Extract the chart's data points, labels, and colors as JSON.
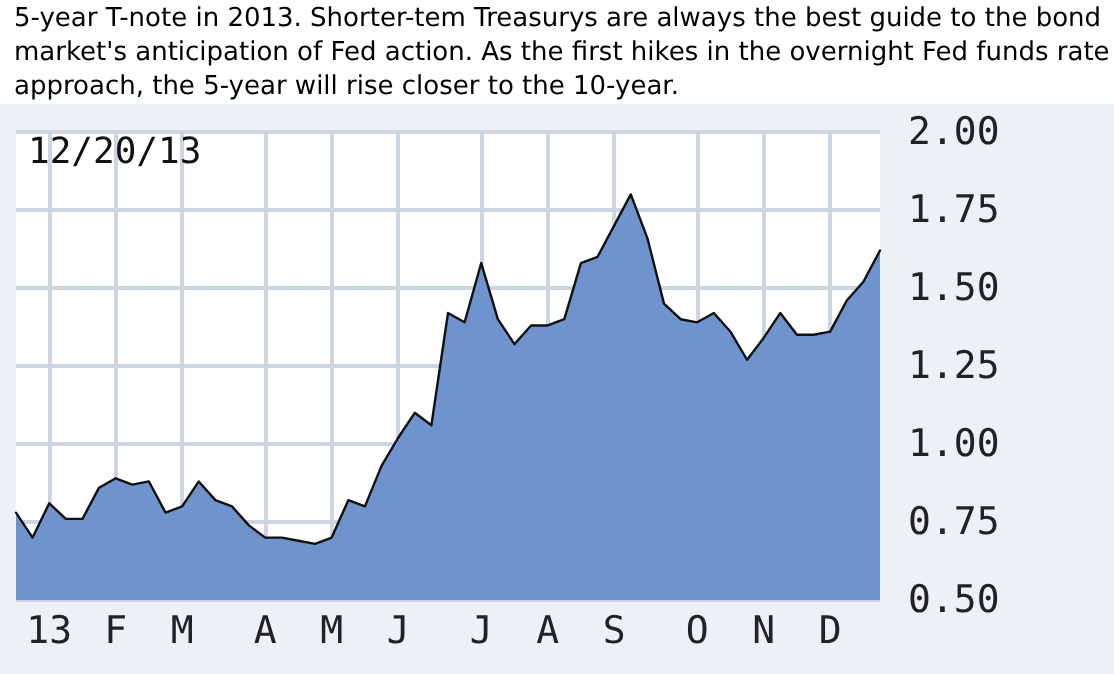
{
  "chart_data": {
    "type": "area",
    "title": "5-year T-note in 2013. Shorter-tem Treasurys are always the best guide to the bond market's anticipation of Fed action. As the first hikes in the overnight Fed funds rate approach, the 5-year will rise closer to the 10-year.",
    "annotations": [
      "12/20/13"
    ],
    "categories": [
      null,
      null,
      "13",
      null,
      null,
      null,
      "F",
      null,
      null,
      null,
      "M",
      null,
      null,
      null,
      null,
      "A",
      null,
      null,
      null,
      "M",
      null,
      null,
      null,
      "J",
      null,
      null,
      null,
      null,
      "J",
      null,
      null,
      null,
      "A",
      null,
      null,
      null,
      "S",
      null,
      null,
      null,
      null,
      "O",
      null,
      null,
      null,
      "N",
      null,
      null,
      null,
      "D",
      null,
      null,
      null
    ],
    "series": [
      {
        "color": "#6f93cc",
        "values": [
          0.78,
          0.7,
          0.81,
          0.76,
          0.76,
          0.86,
          0.89,
          0.87,
          0.88,
          0.78,
          0.8,
          0.88,
          0.82,
          0.8,
          0.74,
          0.7,
          0.7,
          0.69,
          0.68,
          0.7,
          0.82,
          0.8,
          0.93,
          1.02,
          1.1,
          1.06,
          1.42,
          1.39,
          1.58,
          1.4,
          1.32,
          1.38,
          1.38,
          1.4,
          1.58,
          1.6,
          1.7,
          1.8,
          1.66,
          1.45,
          1.4,
          1.39,
          1.42,
          1.36,
          1.27,
          1.34,
          1.42,
          1.35,
          1.35,
          1.36,
          1.46,
          1.52,
          1.62
        ]
      }
    ],
    "ylim": [
      0.5,
      2.0
    ],
    "yticks": [
      {
        "value": 0.5,
        "label": "0.50"
      },
      {
        "value": 0.75,
        "label": "0.75"
      },
      {
        "value": 1.0,
        "label": "1.00"
      },
      {
        "value": 1.25,
        "label": "1.25"
      },
      {
        "value": 1.5,
        "label": "1.50"
      },
      {
        "value": 1.75,
        "label": "1.75"
      },
      {
        "value": 2.0,
        "label": "2.00"
      }
    ],
    "grid": true,
    "marker": "none",
    "line_style": "solid"
  }
}
